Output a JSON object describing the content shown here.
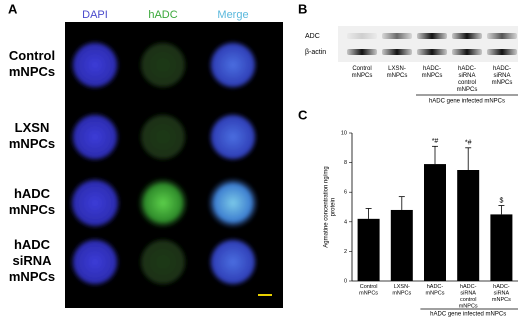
{
  "panel_a": {
    "label": "A",
    "columns": [
      "DAPI",
      "hADC",
      "Merge"
    ],
    "rows": [
      "Control\nmNPCs",
      "LXSN\nmNPCs",
      "hADC\nmNPCs",
      "hADC\nsiRNA\nmNPCs"
    ]
  },
  "panel_b": {
    "label": "B",
    "bands": [
      "ADC",
      "β-actin"
    ],
    "lanes": [
      "Control\nmNPCs",
      "LXSN-\nmNPCs",
      "hADC-\nmNPCs",
      "hADC-\nsiRNA\ncontrol\nmNPCs",
      "hADC-\nsiRNA\nmNPCs"
    ],
    "group_label": "hADC gene infected mNPCs"
  },
  "chart_data": {
    "type": "bar",
    "label": "C",
    "y_label": "Agmatine concentration ng/mg\nprotein",
    "categories": [
      "Control\nmNPCs",
      "LXSN-\nmNPCs",
      "hADC-\nmNPCs",
      "hADC-\nsiRNA\ncontrol\nmNPCs",
      "hADC-\nsiRNA\nmNPCs"
    ],
    "values": [
      4.2,
      4.8,
      7.9,
      7.5,
      4.5
    ],
    "errors": [
      0.7,
      0.9,
      1.2,
      1.5,
      0.6
    ],
    "annotations": [
      null,
      null,
      "*#",
      "*#",
      "$"
    ],
    "group_label": "hADC gene infected mNPCs",
    "color": "#000000",
    "ylim": [
      0,
      10
    ],
    "yticks": [
      0,
      2,
      4,
      6,
      8,
      10
    ]
  }
}
